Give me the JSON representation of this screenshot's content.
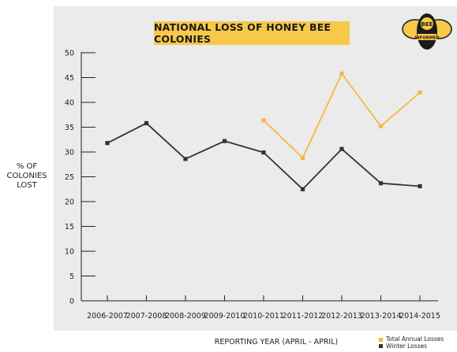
{
  "chart_data": {
    "type": "line",
    "title": "NATIONAL LOSS OF HONEY BEE COLONIES",
    "xlabel": "REPORTING YEAR (APRIL - APRIL)",
    "ylabel": "% OF COLONIES LOST",
    "ylabel_lines": [
      "% OF",
      "COLONIES",
      "LOST"
    ],
    "ylim": [
      0,
      50
    ],
    "yticks": [
      0,
      5,
      10,
      15,
      20,
      25,
      30,
      35,
      40,
      45,
      50
    ],
    "categories": [
      "2006-2007",
      "2007-2008",
      "2008-2009",
      "2009-2010",
      "2010-2011",
      "2011-2012",
      "2012-2013",
      "2013-2014",
      "2014-2015"
    ],
    "series": [
      {
        "name": "Total Annual Losses",
        "color": "#f5b93b",
        "values": [
          null,
          null,
          null,
          null,
          36.4,
          28.8,
          45.8,
          35.2,
          42.0
        ]
      },
      {
        "name": "Winter Losses",
        "color": "#333333",
        "values": [
          31.8,
          35.8,
          28.6,
          32.2,
          29.9,
          22.5,
          30.6,
          23.7,
          23.1
        ]
      }
    ],
    "grid": false,
    "legend_position": "bottom-right"
  },
  "logo": {
    "line1": "BEE",
    "line2": "INFORMED",
    "icon": "bee-logo-icon",
    "colors": {
      "yellow": "#f7c94a",
      "dark": "#1a1a1a"
    }
  },
  "colors": {
    "panel": "#ebebeb",
    "title_bg": "#f7c94a",
    "axis": "#222222"
  }
}
